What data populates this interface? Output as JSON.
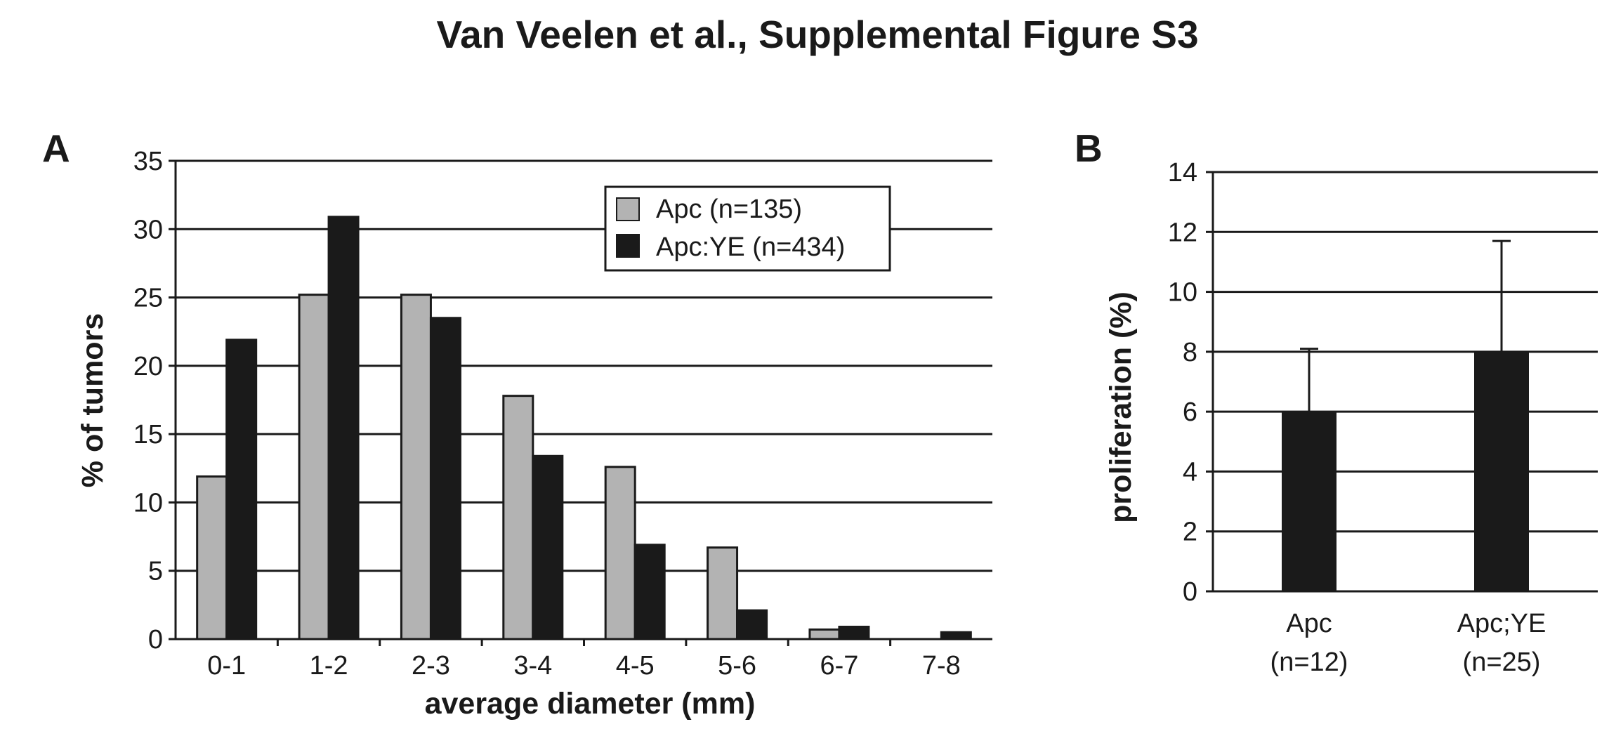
{
  "figure_title": "Van Veelen et al., Supplemental Figure S3",
  "colors": {
    "series_light": "#b3b3b3",
    "series_dark": "#1a1a1a",
    "gridline": "#1a1a1a"
  },
  "chart_data": [
    {
      "panel": "A",
      "type": "bar",
      "title": "",
      "xlabel": "average diameter (mm)",
      "ylabel": "% of tumors",
      "ylim": [
        0,
        35
      ],
      "yticks": [
        0,
        5,
        10,
        15,
        20,
        25,
        30,
        35
      ],
      "grid": true,
      "legend_position": "top-right",
      "categories": [
        "0-1",
        "1-2",
        "2-3",
        "3-4",
        "4-5",
        "5-6",
        "6-7",
        "7-8"
      ],
      "series": [
        {
          "name": "Apc (n=135)",
          "color": "#b3b3b3",
          "values": [
            11.9,
            25.2,
            25.2,
            17.8,
            12.6,
            6.7,
            0.7,
            0
          ]
        },
        {
          "name": "Apc:YE (n=434)",
          "color": "#1a1a1a",
          "values": [
            21.9,
            30.9,
            23.5,
            13.4,
            6.9,
            2.1,
            0.9,
            0.5
          ]
        }
      ]
    },
    {
      "panel": "B",
      "type": "bar",
      "title": "",
      "xlabel": "",
      "ylabel": "proliferation (%)",
      "ylim": [
        0,
        14
      ],
      "yticks": [
        0,
        2,
        4,
        6,
        8,
        10,
        12,
        14
      ],
      "grid": true,
      "categories": [
        [
          "Apc",
          "(n=12)"
        ],
        [
          "Apc;YE",
          "(n=25)"
        ]
      ],
      "values": [
        6.0,
        8.0
      ],
      "error": [
        2.1,
        3.7
      ],
      "color": "#1a1a1a"
    }
  ]
}
